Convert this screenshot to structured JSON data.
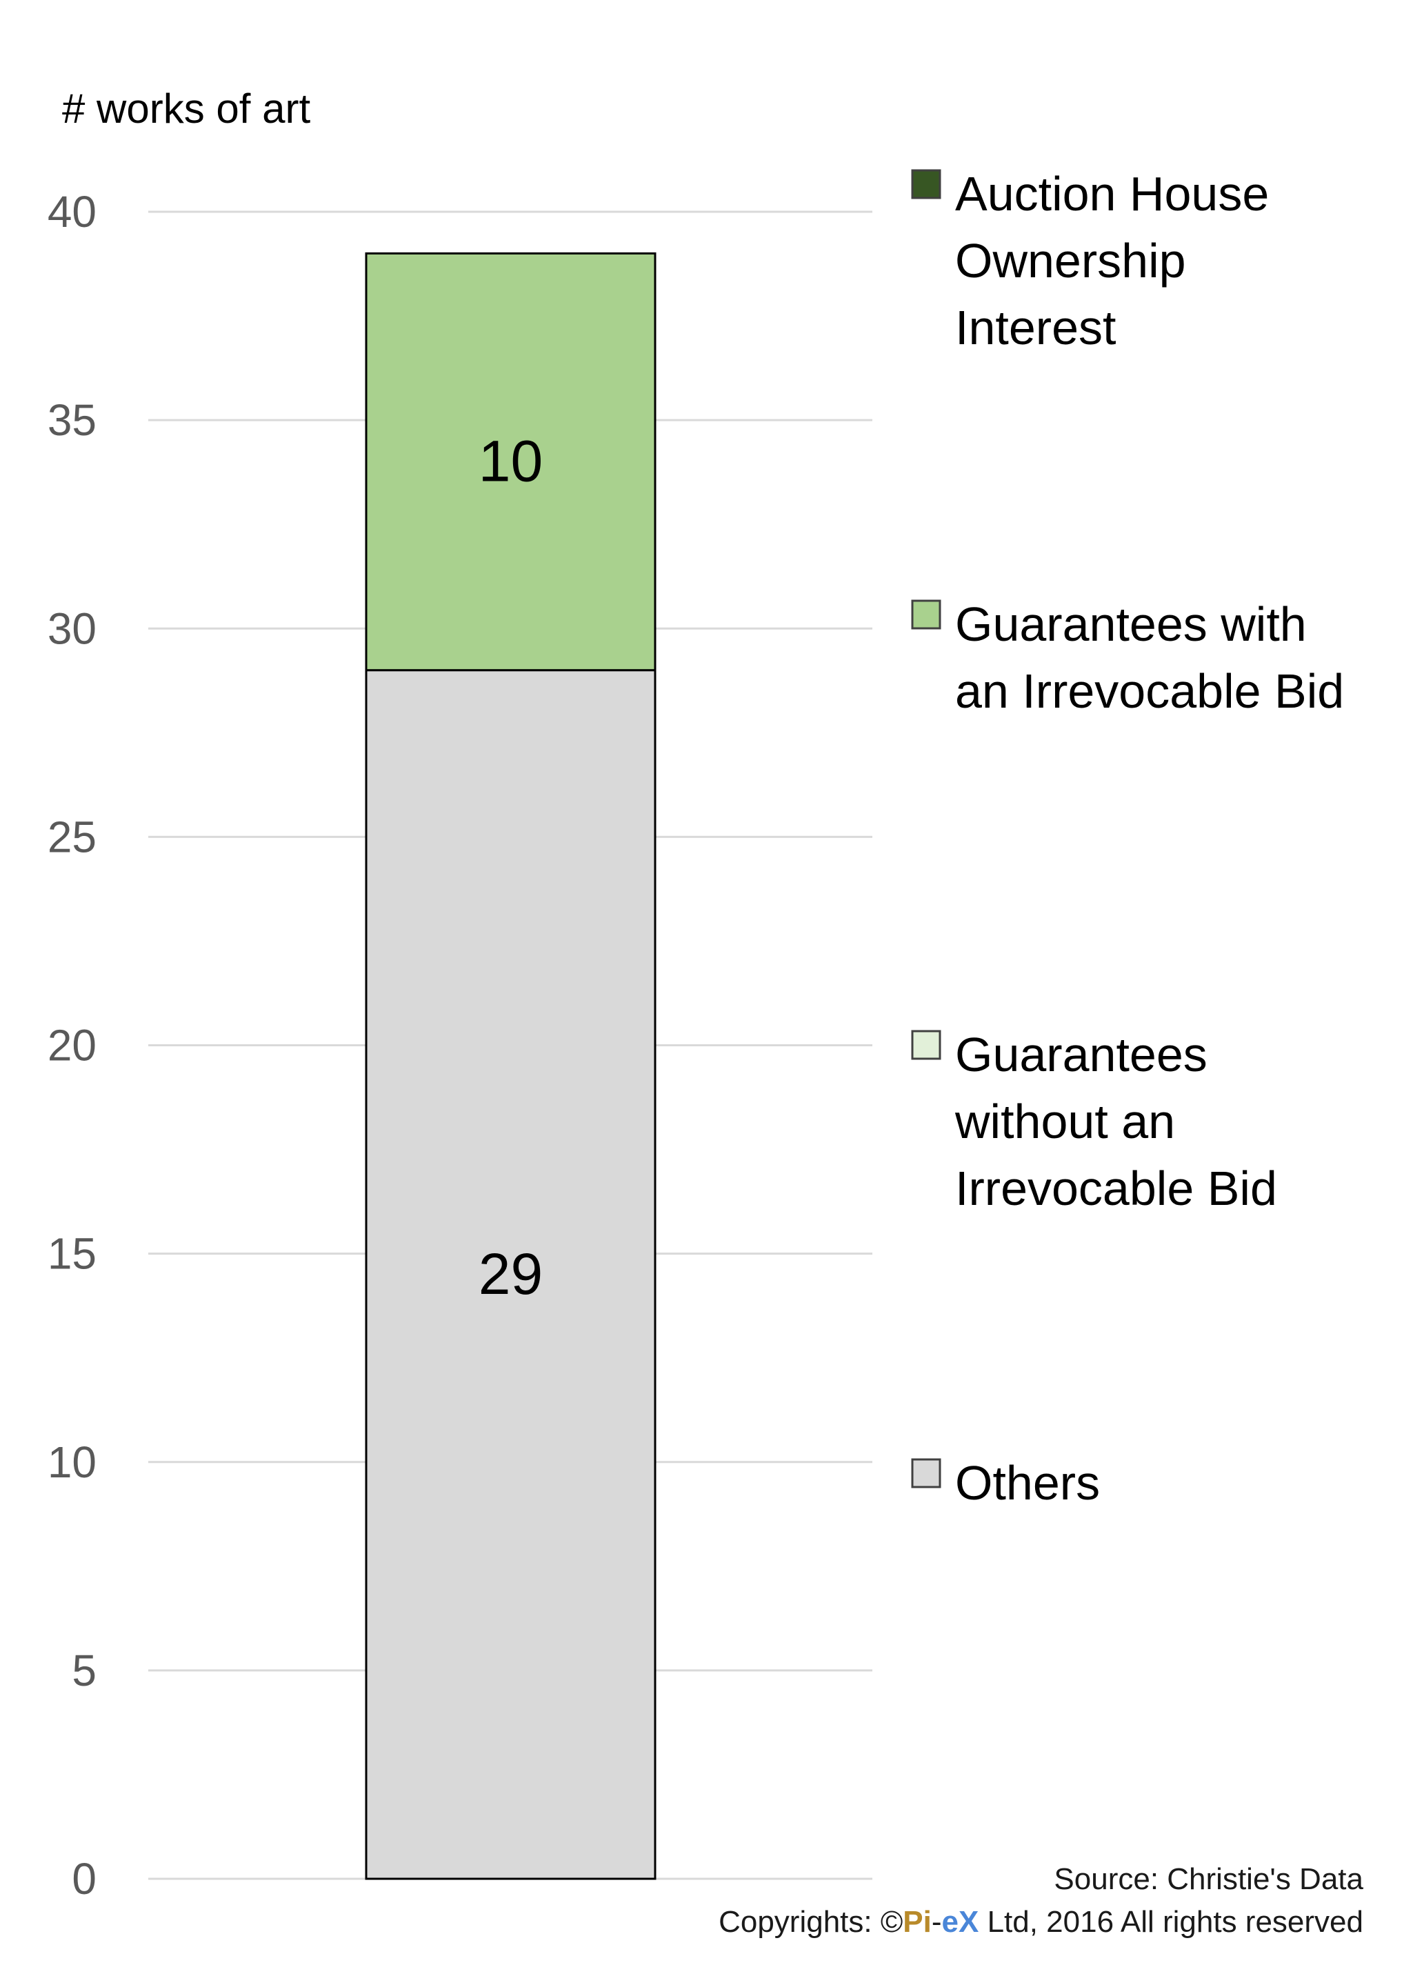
{
  "chart_data": {
    "type": "bar",
    "stacked": true,
    "categories": [
      ""
    ],
    "ylabel": "# works of art",
    "ylim": [
      0,
      40
    ],
    "yticks": [
      0,
      5,
      10,
      15,
      20,
      25,
      30,
      35,
      40
    ],
    "grid": true,
    "legend_position": "right",
    "series": [
      {
        "name": "Others",
        "values": [
          29
        ],
        "color": "#d9d9d9",
        "data_labels": [
          "29"
        ]
      },
      {
        "name": "Guarantees without an Irrevocable Bid",
        "values": [
          0
        ],
        "color": "#e2f0d9",
        "data_labels": [
          ""
        ]
      },
      {
        "name": "Guarantees with an Irrevocable Bid",
        "values": [
          10
        ],
        "color": "#a9d18e",
        "data_labels": [
          "10"
        ]
      },
      {
        "name": "Auction House Ownership Interest",
        "values": [
          0
        ],
        "color": "#375623",
        "data_labels": [
          ""
        ]
      }
    ],
    "legend": [
      {
        "lines": [
          "Auction House",
          "Ownership",
          "Interest"
        ],
        "color": "#375623",
        "series": "Auction House Ownership Interest"
      },
      {
        "lines": [
          "Guarantees with",
          "an Irrevocable Bid"
        ],
        "color": "#a9d18e",
        "series": "Guarantees with an Irrevocable Bid"
      },
      {
        "lines": [
          "Guarantees",
          "without an",
          "Irrevocable Bid"
        ],
        "color": "#e2f0d9",
        "series": "Guarantees without an Irrevocable Bid"
      },
      {
        "lines": [
          "Others"
        ],
        "color": "#d9d9d9",
        "series": "Others"
      }
    ]
  },
  "footer": {
    "source": "Source: Christie's Data",
    "copyright_prefix": "Copyrights: ©",
    "brand_pi": "Pi",
    "brand_dash": "-",
    "brand_ex": "eX",
    "copyright_suffix": " Ltd, 2016 All rights reserved"
  }
}
